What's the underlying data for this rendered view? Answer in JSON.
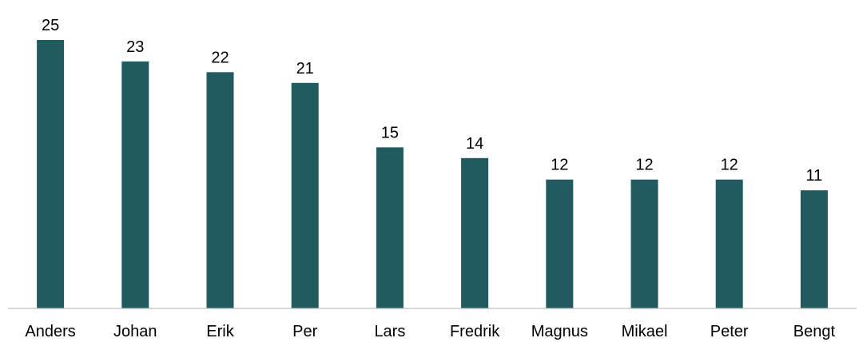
{
  "chart_data": {
    "type": "bar",
    "categories": [
      "Anders",
      "Johan",
      "Erik",
      "Per",
      "Lars",
      "Fredrik",
      "Magnus",
      "Mikael",
      "Peter",
      "Bengt"
    ],
    "values": [
      25,
      23,
      22,
      21,
      15,
      14,
      12,
      12,
      12,
      11
    ],
    "title": "",
    "xlabel": "",
    "ylabel": "",
    "ylim": [
      0,
      25
    ],
    "grid": false,
    "legend": "none",
    "bar_color": "#215A5F",
    "axis_color": "#BFBFBF"
  }
}
